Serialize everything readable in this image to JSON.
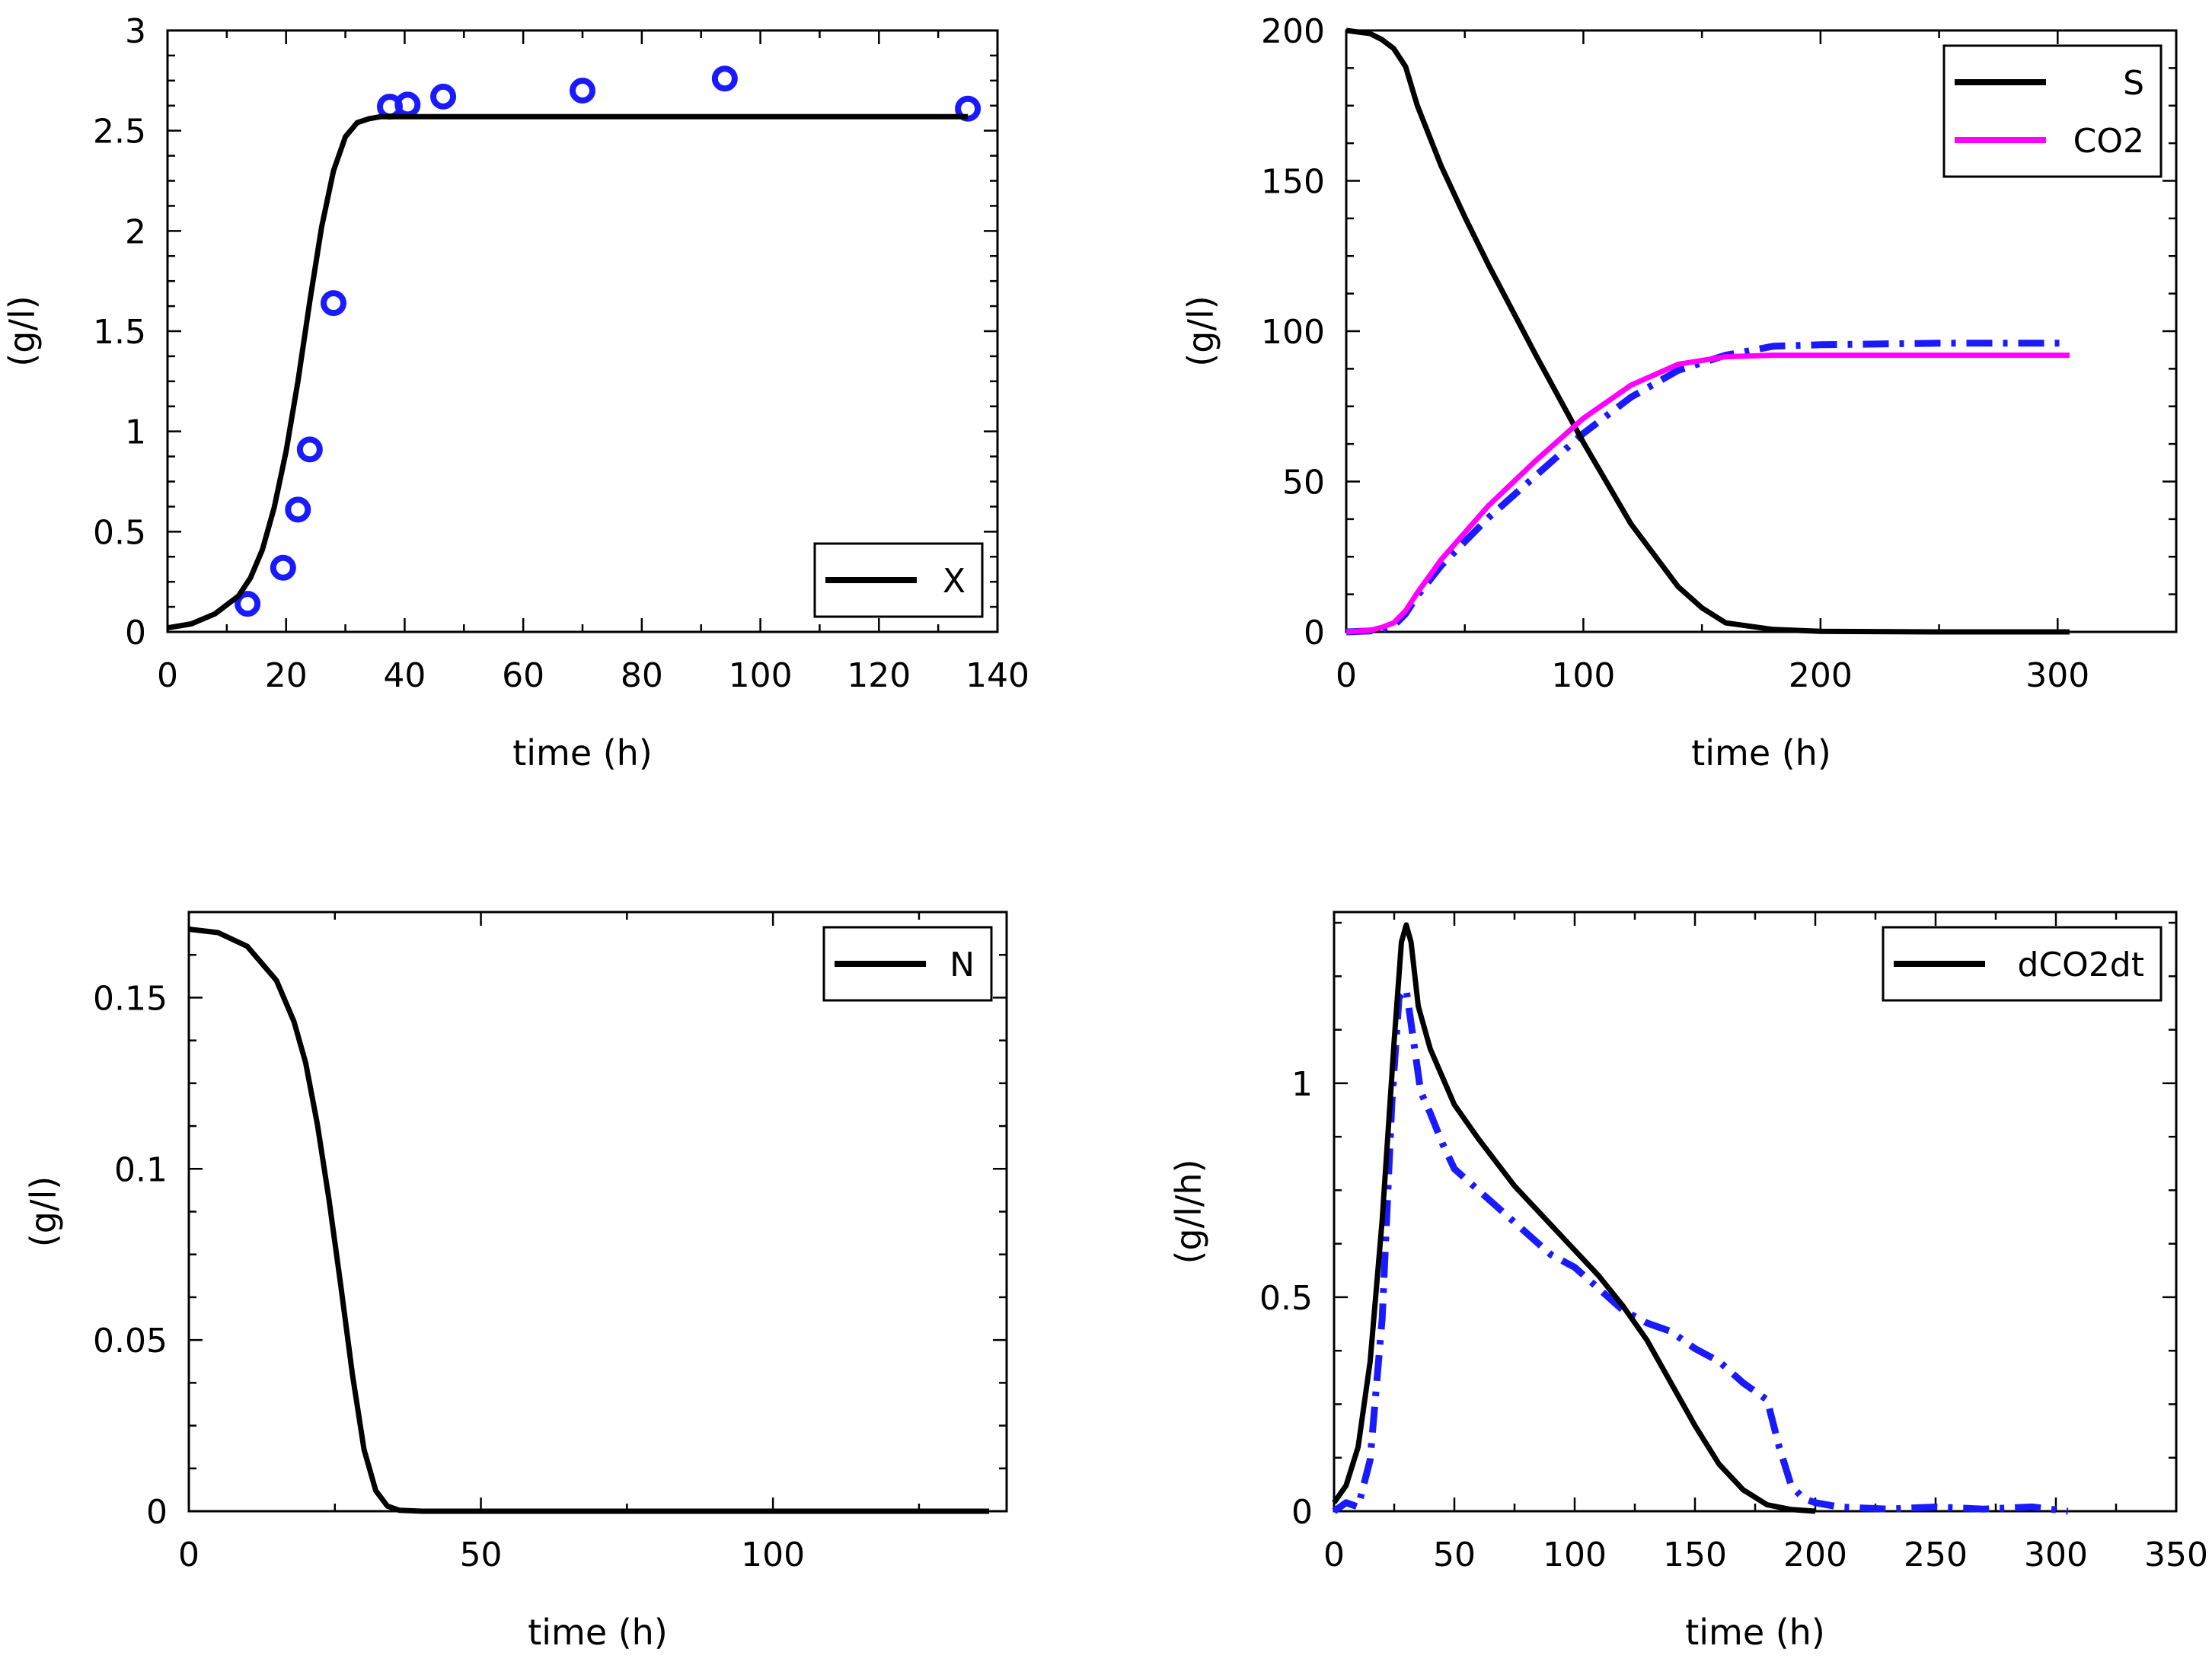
{
  "chart_data": [
    {
      "id": "biomass",
      "type": "line",
      "title": "",
      "xlabel": "time (h)",
      "ylabel": "(g/l)",
      "xlim": [
        0,
        140
      ],
      "ylim": [
        0,
        3
      ],
      "xticks": [
        0,
        20,
        40,
        60,
        80,
        100,
        120,
        140
      ],
      "yticks": [
        0,
        0.5,
        1,
        1.5,
        2,
        2.5,
        3
      ],
      "legend_position": "bottom-right",
      "series": [
        {
          "name": "X",
          "style": "solid",
          "color": "#000000",
          "in_legend": true,
          "x": [
            0,
            4,
            8,
            12,
            14,
            16,
            18,
            20,
            22,
            24,
            26,
            28,
            30,
            32,
            34,
            36,
            40,
            60,
            80,
            100,
            120,
            135
          ],
          "y": [
            0.02,
            0.04,
            0.09,
            0.18,
            0.27,
            0.41,
            0.62,
            0.9,
            1.25,
            1.65,
            2.02,
            2.3,
            2.47,
            2.54,
            2.56,
            2.57,
            2.57,
            2.57,
            2.57,
            2.57,
            2.57,
            2.57
          ]
        },
        {
          "name": "X measured",
          "style": "markers",
          "marker": "ring",
          "color": "#1a1aff",
          "in_legend": false,
          "x": [
            13.5,
            19.5,
            22,
            24,
            28,
            37.5,
            40.5,
            46.5,
            70,
            94,
            135
          ],
          "y": [
            0.14,
            0.32,
            0.61,
            0.91,
            1.64,
            2.62,
            2.63,
            2.67,
            2.7,
            2.76,
            2.61
          ]
        }
      ]
    },
    {
      "id": "substrate-co2",
      "type": "line",
      "title": "",
      "xlabel": "time (h)",
      "ylabel": "(g/l)",
      "xlim": [
        0,
        350
      ],
      "ylim": [
        0,
        200
      ],
      "xticks": [
        0,
        100,
        200,
        300
      ],
      "yticks": [
        0,
        50,
        100,
        150,
        200
      ],
      "legend_position": "top-right",
      "series": [
        {
          "name": "S",
          "style": "solid",
          "color": "#000000",
          "in_legend": true,
          "x": [
            0,
            10,
            15,
            20,
            25,
            30,
            40,
            50,
            60,
            80,
            100,
            120,
            140,
            150,
            160,
            180,
            200,
            250,
            305
          ],
          "y": [
            200,
            199,
            197,
            194,
            188,
            175,
            155,
            138,
            122,
            92,
            63,
            36,
            15,
            8,
            3,
            0.8,
            0.2,
            0,
            0
          ]
        },
        {
          "name": "CO2",
          "style": "solid",
          "color": "#ff00ff",
          "in_legend": true,
          "x": [
            0,
            10,
            15,
            20,
            25,
            30,
            40,
            60,
            80,
            100,
            120,
            140,
            160,
            180,
            200,
            250,
            305
          ],
          "y": [
            0,
            0.5,
            1.5,
            3,
            7,
            13,
            24,
            42,
            57,
            71,
            82,
            89,
            91.5,
            92,
            92,
            92,
            92
          ]
        },
        {
          "name": "CO2 measured",
          "style": "dashdot",
          "color": "#1a1aff",
          "in_legend": false,
          "x": [
            0,
            10,
            15,
            20,
            25,
            30,
            40,
            60,
            80,
            100,
            120,
            140,
            160,
            180,
            200,
            250,
            305
          ],
          "y": [
            0,
            0.3,
            0.8,
            2,
            6,
            12,
            22,
            38,
            52,
            66,
            78,
            87,
            92,
            95,
            95.5,
            96,
            96
          ]
        }
      ]
    },
    {
      "id": "nitrogen",
      "type": "line",
      "title": "",
      "xlabel": "time (h)",
      "ylabel": "(g/l)",
      "xlim": [
        0,
        140
      ],
      "ylim": [
        0,
        0.175
      ],
      "xticks": [
        0,
        50,
        100
      ],
      "yticks": [
        0,
        0.05,
        0.1,
        0.15
      ],
      "legend_position": "top-right",
      "series": [
        {
          "name": "N",
          "style": "solid",
          "color": "#000000",
          "in_legend": true,
          "x": [
            0,
            5,
            10,
            15,
            18,
            20,
            22,
            24,
            26,
            28,
            30,
            32,
            34,
            36,
            40,
            60,
            80,
            100,
            120,
            137
          ],
          "y": [
            0.17,
            0.169,
            0.165,
            0.155,
            0.143,
            0.131,
            0.113,
            0.091,
            0.066,
            0.04,
            0.018,
            0.006,
            0.0015,
            0.0003,
            0,
            0,
            0,
            0,
            0,
            0
          ]
        }
      ]
    },
    {
      "id": "co2-rate",
      "type": "line",
      "title": "",
      "xlabel": "time (h)",
      "ylabel": "(g/l/h)",
      "xlim": [
        0,
        350
      ],
      "ylim": [
        0,
        1.4
      ],
      "xticks": [
        0,
        50,
        100,
        150,
        200,
        250,
        300,
        350
      ],
      "yticks": [
        0,
        0.5,
        1
      ],
      "legend_position": "top-right",
      "series": [
        {
          "name": "dCO2dt",
          "style": "solid",
          "color": "#000000",
          "in_legend": true,
          "x": [
            0,
            5,
            10,
            15,
            20,
            25,
            28,
            30,
            32,
            35,
            40,
            50,
            60,
            75,
            90,
            100,
            110,
            120,
            130,
            140,
            150,
            160,
            170,
            180,
            190,
            200
          ],
          "y": [
            0.02,
            0.06,
            0.15,
            0.35,
            0.68,
            1.1,
            1.33,
            1.37,
            1.33,
            1.18,
            1.08,
            0.95,
            0.87,
            0.76,
            0.67,
            0.61,
            0.55,
            0.48,
            0.4,
            0.3,
            0.2,
            0.11,
            0.05,
            0.015,
            0.004,
            0
          ]
        },
        {
          "name": "dCO2dt measured",
          "style": "dashdot",
          "color": "#1a1aff",
          "in_legend": false,
          "x": [
            0,
            5,
            10,
            15,
            20,
            24,
            27,
            30,
            33,
            36,
            40,
            45,
            50,
            60,
            70,
            80,
            90,
            100,
            110,
            120,
            130,
            140,
            150,
            160,
            170,
            180,
            185,
            190,
            195,
            200,
            210,
            230,
            250,
            270,
            290,
            305
          ],
          "y": [
            0,
            0.02,
            0.01,
            0.12,
            0.45,
            0.95,
            1.2,
            1.22,
            1.1,
            0.98,
            0.93,
            0.86,
            0.8,
            0.75,
            0.7,
            0.65,
            0.6,
            0.57,
            0.52,
            0.47,
            0.44,
            0.42,
            0.38,
            0.35,
            0.3,
            0.26,
            0.15,
            0.06,
            0.03,
            0.02,
            0.01,
            0.005,
            0.01,
            0.005,
            0.01,
            0
          ]
        }
      ]
    }
  ]
}
